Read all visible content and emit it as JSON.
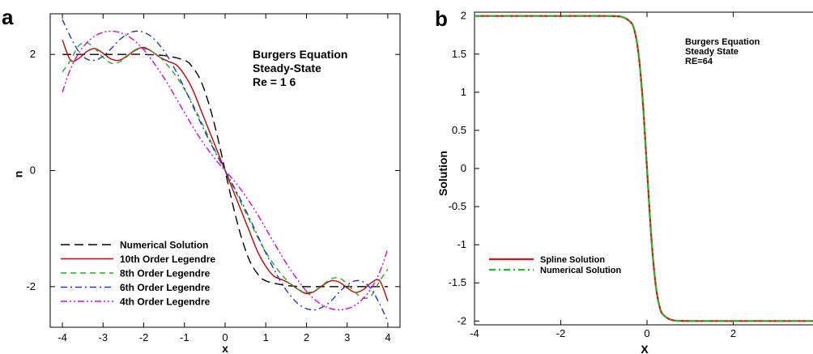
{
  "chart_data": [
    {
      "panel_label": "a",
      "type": "line",
      "xlabel": "x",
      "ylabel": "u",
      "xlim": [
        -4.3,
        4.3
      ],
      "ylim": [
        -2.7,
        2.7
      ],
      "xticks": [
        -4,
        -3,
        -2,
        -1,
        0,
        1,
        2,
        3,
        4
      ],
      "yticks": [
        -2,
        0,
        2
      ],
      "annotation": [
        "Burgers Equation",
        "Steady-State",
        "Re = 1 6"
      ],
      "legend_position": "bottom-left",
      "series": [
        {
          "name": "Numerical Solution",
          "color": "#000000",
          "dash": "long-dash",
          "x": [
            -4,
            -3.5,
            -3,
            -2.5,
            -2,
            -1.5,
            -1,
            -0.8,
            -0.6,
            -0.4,
            -0.2,
            0,
            0.2,
            0.4,
            0.6,
            0.8,
            1,
            1.5,
            2,
            2.5,
            3,
            3.5,
            4
          ],
          "values": [
            2,
            2,
            2,
            2,
            2,
            1.98,
            1.9,
            1.78,
            1.55,
            1.15,
            0.62,
            0,
            -0.62,
            -1.15,
            -1.55,
            -1.78,
            -1.9,
            -1.98,
            -2,
            -2,
            -2,
            -2,
            -2
          ]
        },
        {
          "name": "10th Order Legendre",
          "color": "#cc0000",
          "dash": "solid",
          "x": [
            -4,
            -3.8,
            -3.6,
            -3.4,
            -3.2,
            -3,
            -2.8,
            -2.6,
            -2.4,
            -2.2,
            -2,
            -1.8,
            -1.6,
            -1.4,
            -1.2,
            -1,
            -0.8,
            -0.6,
            -0.4,
            -0.2,
            0,
            0.2,
            0.4,
            0.6,
            0.8,
            1,
            1.2,
            1.4,
            1.6,
            1.8,
            2,
            2.2,
            2.4,
            2.6,
            2.8,
            3,
            3.2,
            3.4,
            3.6,
            3.8,
            4
          ],
          "values": [
            2.25,
            1.9,
            1.93,
            2.05,
            2.1,
            2.02,
            1.92,
            1.9,
            1.98,
            2.08,
            2.12,
            2.05,
            1.95,
            1.88,
            1.82,
            1.65,
            1.4,
            1.05,
            0.7,
            0.35,
            0,
            -0.35,
            -0.7,
            -1.05,
            -1.4,
            -1.65,
            -1.82,
            -1.88,
            -1.95,
            -2.05,
            -2.12,
            -2.08,
            -1.98,
            -1.9,
            -1.92,
            -2.02,
            -2.1,
            -2.05,
            -1.93,
            -1.9,
            -2.25
          ]
        },
        {
          "name": "8th Order Legendre",
          "color": "#22aa22",
          "dash": "dash",
          "x": [
            -4,
            -3.8,
            -3.6,
            -3.4,
            -3.2,
            -3,
            -2.8,
            -2.6,
            -2.4,
            -2.2,
            -2,
            -1.8,
            -1.6,
            -1.4,
            -1.2,
            -1,
            -0.8,
            -0.6,
            -0.4,
            -0.2,
            0,
            0.2,
            0.4,
            0.6,
            0.8,
            1,
            1.2,
            1.4,
            1.6,
            1.8,
            2,
            2.2,
            2.4,
            2.6,
            2.8,
            3,
            3.2,
            3.4,
            3.6,
            3.8,
            4
          ],
          "values": [
            1.7,
            1.9,
            2.15,
            2.2,
            2.1,
            1.95,
            1.85,
            1.87,
            1.97,
            2.07,
            2.1,
            2.05,
            1.95,
            1.8,
            1.62,
            1.4,
            1.15,
            0.86,
            0.57,
            0.28,
            0,
            -0.28,
            -0.57,
            -0.86,
            -1.15,
            -1.4,
            -1.62,
            -1.8,
            -1.95,
            -2.05,
            -2.1,
            -2.07,
            -1.97,
            -1.87,
            -1.85,
            -1.95,
            -2.1,
            -2.2,
            -2.15,
            -1.9,
            -1.7
          ]
        },
        {
          "name": "6th Order Legendre",
          "color": "#2233cc",
          "dash": "dash-dot",
          "x": [
            -4,
            -3.8,
            -3.6,
            -3.4,
            -3.2,
            -3,
            -2.8,
            -2.6,
            -2.4,
            -2.2,
            -2,
            -1.8,
            -1.6,
            -1.4,
            -1.2,
            -1,
            -0.8,
            -0.6,
            -0.4,
            -0.2,
            0,
            0.2,
            0.4,
            0.6,
            0.8,
            1,
            1.2,
            1.4,
            1.6,
            1.8,
            2,
            2.2,
            2.4,
            2.6,
            2.8,
            3,
            3.2,
            3.4,
            3.6,
            3.8,
            4
          ],
          "values": [
            2.6,
            2.3,
            2.05,
            1.92,
            1.9,
            1.97,
            2.1,
            2.25,
            2.35,
            2.4,
            2.38,
            2.3,
            2.15,
            1.95,
            1.7,
            1.42,
            1.12,
            0.82,
            0.53,
            0.26,
            0,
            -0.26,
            -0.53,
            -0.82,
            -1.12,
            -1.42,
            -1.7,
            -1.95,
            -2.15,
            -2.3,
            -2.38,
            -2.4,
            -2.35,
            -2.25,
            -2.1,
            -1.97,
            -1.9,
            -1.92,
            -2.05,
            -2.3,
            -2.6
          ]
        },
        {
          "name": "4th Order Legendre",
          "color": "#dd00dd",
          "dash": "dash-dot-dot",
          "x": [
            -4,
            -3.8,
            -3.6,
            -3.4,
            -3.2,
            -3,
            -2.8,
            -2.6,
            -2.4,
            -2.2,
            -2,
            -1.8,
            -1.6,
            -1.4,
            -1.2,
            -1,
            -0.8,
            -0.6,
            -0.4,
            -0.2,
            0,
            0.2,
            0.4,
            0.6,
            0.8,
            1,
            1.2,
            1.4,
            1.6,
            1.8,
            2,
            2.2,
            2.4,
            2.6,
            2.8,
            3,
            3.2,
            3.4,
            3.6,
            3.8,
            4
          ],
          "values": [
            1.35,
            1.75,
            2.02,
            2.2,
            2.32,
            2.38,
            2.4,
            2.38,
            2.32,
            2.22,
            2.08,
            1.9,
            1.7,
            1.48,
            1.24,
            1,
            0.76,
            0.54,
            0.34,
            0.16,
            0,
            -0.16,
            -0.34,
            -0.54,
            -0.76,
            -1,
            -1.24,
            -1.48,
            -1.7,
            -1.9,
            -2.08,
            -2.22,
            -2.32,
            -2.38,
            -2.4,
            -2.38,
            -2.32,
            -2.2,
            -2.02,
            -1.75,
            -1.35
          ]
        }
      ]
    },
    {
      "panel_label": "b",
      "type": "line",
      "xlabel": "X",
      "ylabel": "Solution",
      "xlim": [
        -4,
        4
      ],
      "ylim": [
        -2.05,
        2.05
      ],
      "xticks": [
        -4,
        -2,
        0,
        2
      ],
      "yticks": [
        -2,
        -1.5,
        -1,
        -0.5,
        0,
        0.5,
        1,
        1.5,
        2
      ],
      "ytick_labels": [
        "-2",
        "-1.5",
        "-1",
        "-0.5",
        "0",
        "0.5",
        "1",
        "1.5",
        "2"
      ],
      "annotation": [
        "Burgers Equation",
        "Steady State",
        "RE=64"
      ],
      "legend_position": "bottom-left",
      "series": [
        {
          "name": "Spline Solution",
          "color": "#dd1111",
          "dash": "solid",
          "x": [
            -4,
            -2,
            -1,
            -0.6,
            -0.4,
            -0.3,
            -0.2,
            -0.1,
            0,
            0.1,
            0.2,
            0.3,
            0.4,
            0.6,
            1,
            2,
            4
          ],
          "values": [
            2,
            2,
            2,
            1.99,
            1.93,
            1.83,
            1.52,
            0.9,
            0,
            -0.9,
            -1.52,
            -1.83,
            -1.93,
            -1.99,
            -2,
            -2,
            -2
          ]
        },
        {
          "name": "Numerical Solution",
          "color": "#22bb22",
          "dash": "dash-dot",
          "x": [
            -4,
            -2,
            -1,
            -0.6,
            -0.4,
            -0.3,
            -0.2,
            -0.1,
            0,
            0.1,
            0.2,
            0.3,
            0.4,
            0.6,
            1,
            2,
            4
          ],
          "values": [
            2,
            2,
            2,
            1.99,
            1.93,
            1.83,
            1.52,
            0.9,
            0,
            -0.9,
            -1.52,
            -1.83,
            -1.93,
            -1.99,
            -2,
            -2,
            -2
          ]
        }
      ]
    }
  ]
}
